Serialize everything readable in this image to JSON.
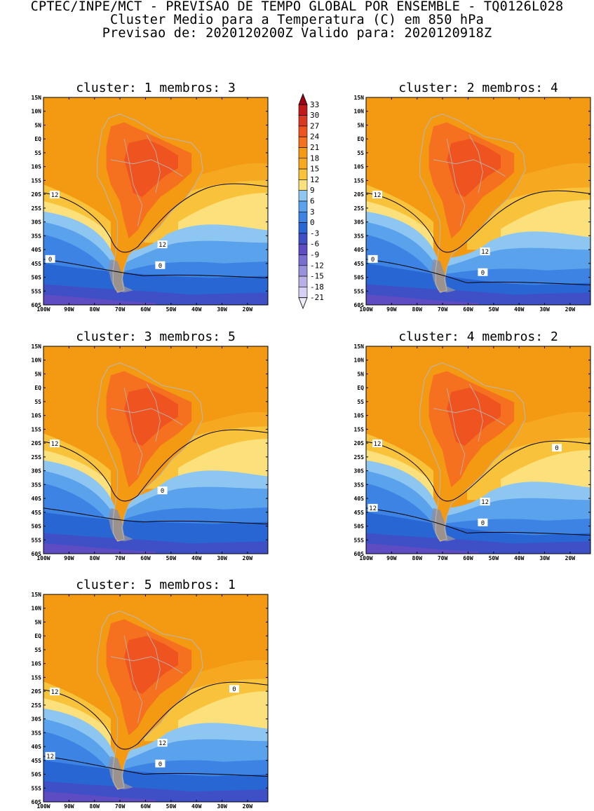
{
  "title": {
    "line1": "CPTEC/INPE/MCT - PREVISAO DE TEMPO GLOBAL POR ENSEMBLE - TQ0126L028",
    "line2": "Cluster Medio para a Temperatura (C) em 850 hPa",
    "line3": "Previsao de: 2020120200Z   Valido para: 2020120918Z"
  },
  "panels": [
    {
      "title": "cluster: 1  membros: 3",
      "contour_labels": [
        "12",
        "12",
        "0",
        "0"
      ]
    },
    {
      "title": "cluster: 2  membros: 4",
      "contour_labels": [
        "12",
        "12",
        "0",
        "0"
      ]
    },
    {
      "title": "cluster: 3  membros: 5",
      "contour_labels": [
        "12",
        "0"
      ]
    },
    {
      "title": "cluster: 4  membros: 2",
      "contour_labels": [
        "12",
        "12",
        "12",
        "0",
        "0"
      ]
    },
    {
      "title": "cluster: 5  membros: 1",
      "contour_labels": [
        "12",
        "12",
        "12",
        "0",
        "0"
      ]
    }
  ],
  "axes": {
    "lat_labels": [
      "15N",
      "10N",
      "5N",
      "EQ",
      "5S",
      "10S",
      "15S",
      "20S",
      "25S",
      "30S",
      "35S",
      "40S",
      "45S",
      "50S",
      "55S",
      "60S"
    ],
    "lon_labels": [
      "100W",
      "90W",
      "80W",
      "70W",
      "60W",
      "50W",
      "40W",
      "30W",
      "20W"
    ],
    "lat_range": [
      -60,
      15
    ],
    "lon_range": [
      -100,
      -12
    ]
  },
  "colorbar": {
    "levels": [
      "33",
      "30",
      "27",
      "24",
      "21",
      "18",
      "15",
      "12",
      "9",
      "6",
      "3",
      "0",
      "-3",
      "-6",
      "-9",
      "-12",
      "-15",
      "-18",
      "-21"
    ],
    "colors": [
      "#9e0016",
      "#c01a1a",
      "#d93a22",
      "#ef5420",
      "#f5701f",
      "#f39a12",
      "#f6a821",
      "#f8c23a",
      "#fbe07c",
      "#8ec6f2",
      "#5aa2eb",
      "#3d83e4",
      "#2866d4",
      "#3f4fc6",
      "#5d4cc2",
      "#7a6fd0",
      "#9890dc",
      "#b7b1e7",
      "#d5d1f2",
      "#ecebfa"
    ]
  }
}
